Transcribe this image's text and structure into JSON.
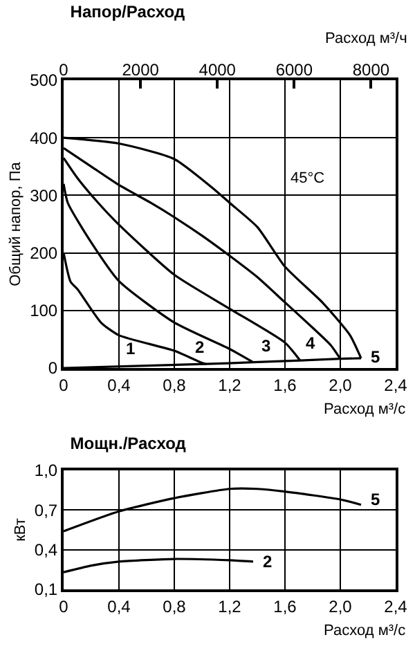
{
  "chart_data": [
    {
      "type": "line",
      "title": "Напор/Расход",
      "xlabel": "Расход м³/с",
      "x2label": "Расход м³/ч",
      "ylabel": "Общий напор, Па",
      "xlim": [
        0,
        2.4
      ],
      "xticks": [
        0,
        {
          "value": 0.4,
          "label": "0,4"
        },
        {
          "value": 0.8,
          "label": "0,8"
        },
        {
          "value": 1.2,
          "label": "1,2"
        },
        {
          "value": 1.6,
          "label": "1,6"
        },
        {
          "value": 2.0,
          "label": "2,0"
        },
        {
          "value": 2.4,
          "label": "2,4"
        }
      ],
      "x2lim": [
        0,
        8640
      ],
      "x2ticks": [
        0,
        2000,
        4000,
        6000,
        8000
      ],
      "ylim": [
        0,
        500
      ],
      "yticks": [
        0,
        100,
        200,
        300,
        400,
        500
      ],
      "grid": true,
      "legend": false,
      "marker": "none",
      "line_style": "solid",
      "series": [
        {
          "name": "1",
          "color": "#000000",
          "x": [
            0,
            0.05,
            0.1,
            0.27,
            0.4,
            0.8,
            1.0,
            1.03
          ],
          "values": [
            200,
            150,
            137,
            79,
            57,
            30,
            9,
            7
          ]
        },
        {
          "name": "2",
          "color": "#000000",
          "x": [
            0,
            0.03,
            0.2,
            0.4,
            0.8,
            1.2,
            1.37
          ],
          "values": [
            320,
            287,
            218,
            151,
            79,
            33,
            10
          ]
        },
        {
          "name": "3",
          "color": "#000000",
          "x": [
            0,
            0.1,
            0.25,
            0.4,
            0.8,
            1.2,
            1.6,
            1.71
          ],
          "values": [
            365,
            330,
            287,
            249,
            162,
            103,
            44,
            13
          ]
        },
        {
          "name": "4",
          "color": "#000000",
          "x": [
            0,
            0.2,
            0.4,
            0.63,
            0.8,
            1.0,
            1.2,
            1.4,
            1.6,
            1.8,
            1.93,
            2.0
          ],
          "values": [
            382,
            350,
            318,
            287,
            262,
            230,
            195,
            158,
            114,
            70,
            40,
            16
          ]
        },
        {
          "name": "5",
          "color": "#000000",
          "x": [
            0,
            0.4,
            0.8,
            1.1,
            1.2,
            1.4,
            1.6,
            1.87,
            2.07,
            2.15
          ],
          "values": [
            400,
            390,
            363,
            308,
            287,
            245,
            176,
            114,
            57,
            17
          ]
        },
        {
          "color": "#000000",
          "x": [
            0,
            1.03,
            1.37,
            1.71,
            2.0,
            2.15
          ],
          "values": [
            0,
            7,
            10,
            13,
            16,
            17
          ]
        }
      ],
      "annotations": [
        "45°C"
      ]
    },
    {
      "type": "line",
      "title": "Мощн./Расход",
      "xlabel": "Расход м³/с",
      "ylabel": "кВт",
      "xlim": [
        0,
        2.4
      ],
      "xticks": [
        0,
        {
          "value": 0.4,
          "label": "0,4"
        },
        {
          "value": 0.8,
          "label": "0,8"
        },
        {
          "value": 1.2,
          "label": "1,2"
        },
        {
          "value": 1.6,
          "label": "1,6"
        },
        {
          "value": 2.0,
          "label": "2,0"
        },
        {
          "value": 2.4,
          "label": "2,4"
        }
      ],
      "ylim": [
        0.1,
        1.0
      ],
      "yticks": [
        {
          "value": 0.1,
          "label": "0,1"
        },
        {
          "value": 0.4,
          "label": "0,4"
        },
        {
          "value": 0.7,
          "label": "0,7"
        },
        {
          "value": 1.0,
          "label": "1,0"
        }
      ],
      "grid": true,
      "legend": false,
      "marker": "none",
      "line_style": "solid",
      "series": [
        {
          "name": "5",
          "color": "#000000",
          "x": [
            0,
            0.4,
            0.8,
            1.2,
            1.4,
            1.6,
            2.0,
            2.15
          ],
          "values": [
            0.54,
            0.69,
            0.79,
            0.86,
            0.86,
            0.84,
            0.78,
            0.74
          ]
        },
        {
          "name": "2",
          "color": "#000000",
          "x": [
            0,
            0.2,
            0.4,
            0.8,
            1.2,
            1.37
          ],
          "values": [
            0.23,
            0.28,
            0.31,
            0.33,
            0.32,
            0.31
          ]
        }
      ]
    }
  ]
}
